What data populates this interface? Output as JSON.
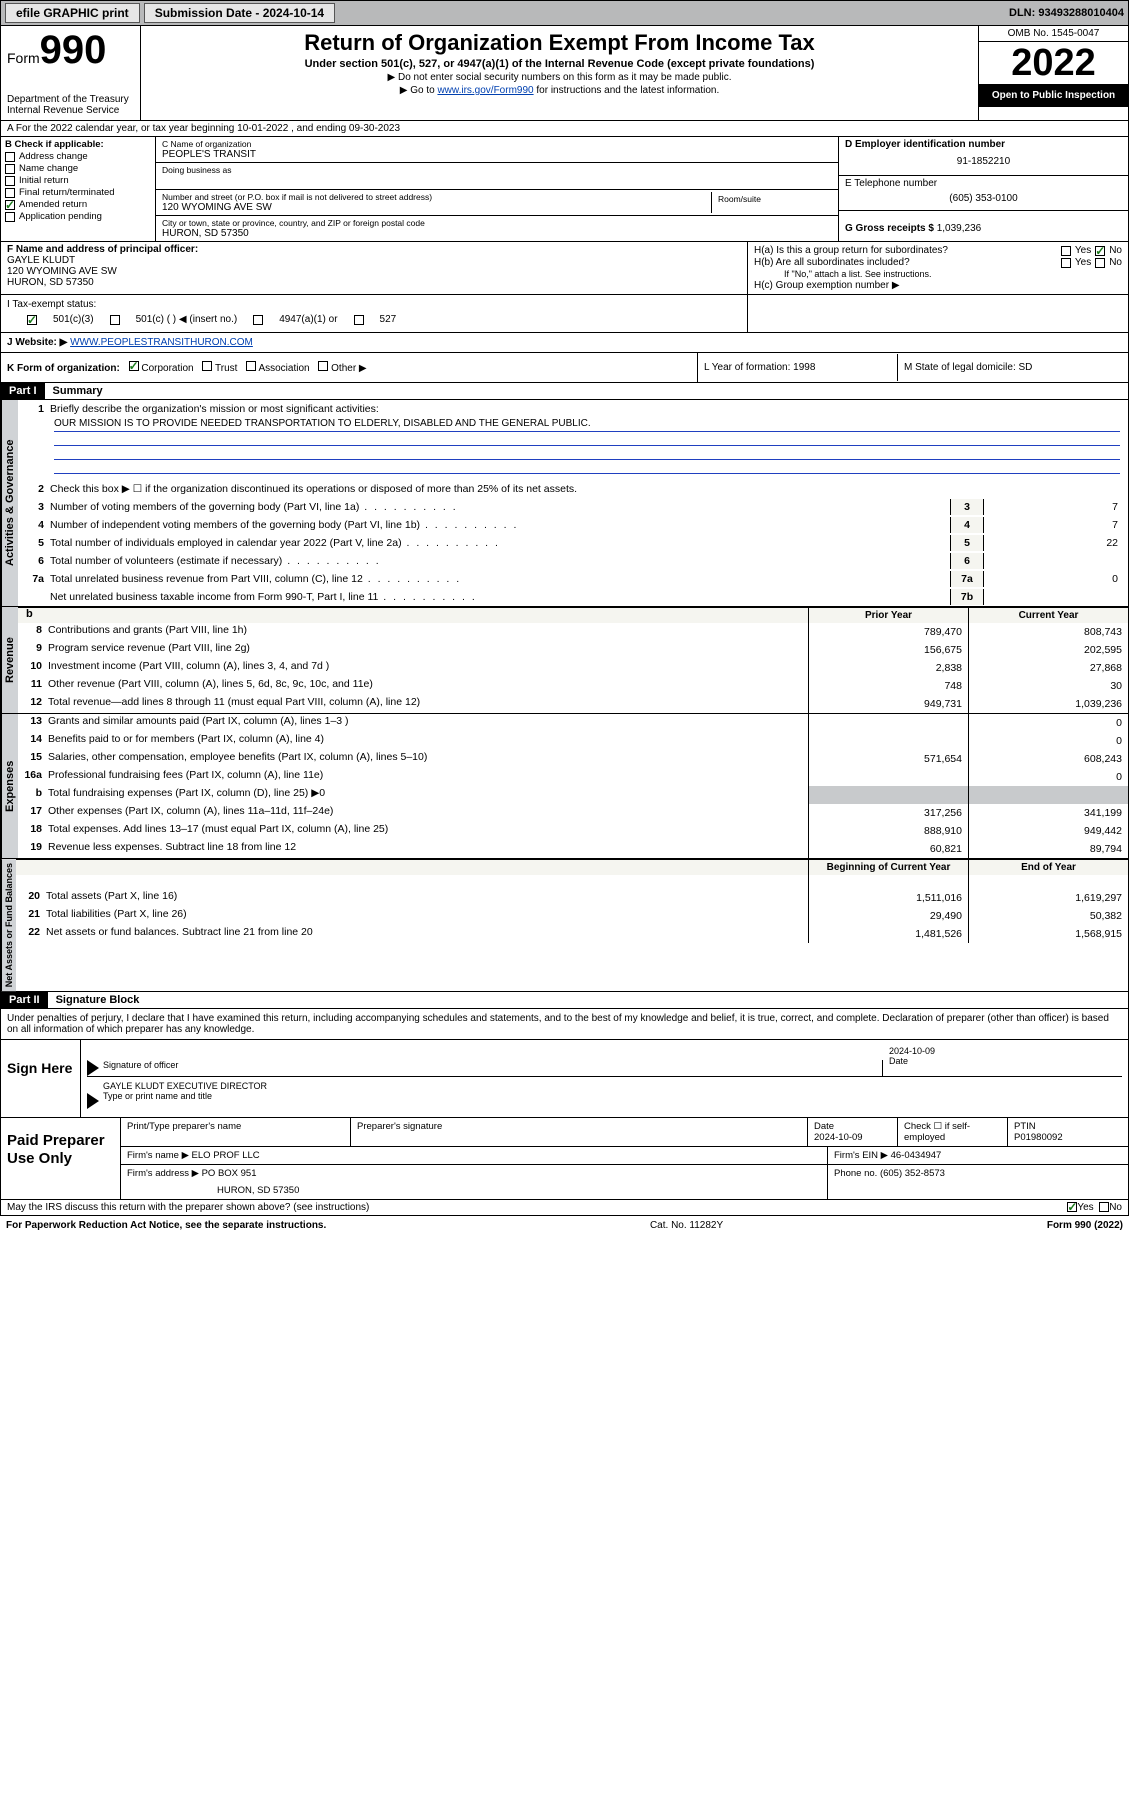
{
  "topbar": {
    "efile": "efile GRAPHIC print",
    "submission_label": "Submission Date - 2024-10-14",
    "dln": "DLN: 93493288010404"
  },
  "header": {
    "form_word": "Form",
    "form_no": "990",
    "dept": "Department of the Treasury",
    "irs": "Internal Revenue Service",
    "title": "Return of Organization Exempt From Income Tax",
    "sub": "Under section 501(c), 527, or 4947(a)(1) of the Internal Revenue Code (except private foundations)",
    "note1": "▶ Do not enter social security numbers on this form as it may be made public.",
    "note2_pre": "▶ Go to ",
    "note2_link": "www.irs.gov/Form990",
    "note2_post": " for instructions and the latest information.",
    "omb": "OMB No. 1545-0047",
    "year": "2022",
    "inspect": "Open to Public Inspection"
  },
  "row_a": "A For the 2022 calendar year, or tax year beginning 10-01-2022   , and ending 09-30-2023",
  "col_b": {
    "title": "B Check if applicable:",
    "items": [
      "Address change",
      "Name change",
      "Initial return",
      "Final return/terminated",
      "Amended return",
      "Application pending"
    ],
    "checked_idx": 4
  },
  "col_c": {
    "name_lab": "C Name of organization",
    "name": "PEOPLE'S TRANSIT",
    "dba_lab": "Doing business as",
    "dba": "",
    "street_lab": "Number and street (or P.O. box if mail is not delivered to street address)",
    "street": "120 WYOMING AVE SW",
    "suite_lab": "Room/suite",
    "city_lab": "City or town, state or province, country, and ZIP or foreign postal code",
    "city": "HURON, SD  57350"
  },
  "col_d": {
    "ein_lab": "D Employer identification number",
    "ein": "91-1852210",
    "tel_lab": "E Telephone number",
    "tel": "(605) 353-0100",
    "gross_lab": "G Gross receipts $",
    "gross": "1,039,236"
  },
  "row_f": {
    "lab": "F Name and address of principal officer:",
    "name": "GAYLE KLUDT",
    "addr1": "120 WYOMING AVE SW",
    "addr2": "HURON, SD  57350"
  },
  "row_h": {
    "ha": "H(a)  Is this a group return for subordinates?",
    "hb": "H(b)  Are all subordinates included?",
    "hb_note": "If \"No,\" attach a list. See instructions.",
    "hc": "H(c)  Group exemption number ▶",
    "yes": "Yes",
    "no": "No"
  },
  "row_i": {
    "lab": "I   Tax-exempt status:",
    "o1": "501(c)(3)",
    "o2": "501(c) (  ) ◀ (insert no.)",
    "o3": "4947(a)(1) or",
    "o4": "527"
  },
  "row_j": {
    "lab": "J   Website: ▶",
    "val": "WWW.PEOPLESTRANSITHURON.COM"
  },
  "row_k": {
    "lab": "K Form of organization:",
    "o1": "Corporation",
    "o2": "Trust",
    "o3": "Association",
    "o4": "Other ▶",
    "l": "L Year of formation: 1998",
    "m": "M State of legal domicile: SD"
  },
  "part1": {
    "hdr": "Part I",
    "title": "Summary"
  },
  "p1": {
    "l1_lab": "Briefly describe the organization's mission or most significant activities:",
    "l1_text": "OUR MISSION IS TO PROVIDE NEEDED TRANSPORTATION TO ELDERLY, DISABLED AND THE GENERAL PUBLIC.",
    "l2": "Check this box ▶ ☐  if the organization discontinued its operations or disposed of more than 25% of its net assets.",
    "lines_gov": [
      {
        "n": "3",
        "d": "Number of voting members of the governing body (Part VI, line 1a)",
        "box": "3",
        "v": "7"
      },
      {
        "n": "4",
        "d": "Number of independent voting members of the governing body (Part VI, line 1b)",
        "box": "4",
        "v": "7"
      },
      {
        "n": "5",
        "d": "Total number of individuals employed in calendar year 2022 (Part V, line 2a)",
        "box": "5",
        "v": "22"
      },
      {
        "n": "6",
        "d": "Total number of volunteers (estimate if necessary)",
        "box": "6",
        "v": ""
      },
      {
        "n": "7a",
        "d": "Total unrelated business revenue from Part VIII, column (C), line 12",
        "box": "7a",
        "v": "0"
      },
      {
        "n": "",
        "d": "Net unrelated business taxable income from Form 990-T, Part I, line 11",
        "box": "7b",
        "v": ""
      }
    ],
    "hdr_b": "b",
    "hdr_prior": "Prior Year",
    "hdr_curr": "Current Year",
    "rev": [
      {
        "n": "8",
        "d": "Contributions and grants (Part VIII, line 1h)",
        "p": "789,470",
        "c": "808,743"
      },
      {
        "n": "9",
        "d": "Program service revenue (Part VIII, line 2g)",
        "p": "156,675",
        "c": "202,595"
      },
      {
        "n": "10",
        "d": "Investment income (Part VIII, column (A), lines 3, 4, and 7d )",
        "p": "2,838",
        "c": "27,868"
      },
      {
        "n": "11",
        "d": "Other revenue (Part VIII, column (A), lines 5, 6d, 8c, 9c, 10c, and 11e)",
        "p": "748",
        "c": "30"
      },
      {
        "n": "12",
        "d": "Total revenue—add lines 8 through 11 (must equal Part VIII, column (A), line 12)",
        "p": "949,731",
        "c": "1,039,236"
      }
    ],
    "exp": [
      {
        "n": "13",
        "d": "Grants and similar amounts paid (Part IX, column (A), lines 1–3 )",
        "p": "",
        "c": "0"
      },
      {
        "n": "14",
        "d": "Benefits paid to or for members (Part IX, column (A), line 4)",
        "p": "",
        "c": "0"
      },
      {
        "n": "15",
        "d": "Salaries, other compensation, employee benefits (Part IX, column (A), lines 5–10)",
        "p": "571,654",
        "c": "608,243"
      },
      {
        "n": "16a",
        "d": "Professional fundraising fees (Part IX, column (A), line 11e)",
        "p": "",
        "c": "0"
      },
      {
        "n": "b",
        "d": "Total fundraising expenses (Part IX, column (D), line 25) ▶0",
        "p": "__shade__",
        "c": "__shade__"
      },
      {
        "n": "17",
        "d": "Other expenses (Part IX, column (A), lines 11a–11d, 11f–24e)",
        "p": "317,256",
        "c": "341,199"
      },
      {
        "n": "18",
        "d": "Total expenses. Add lines 13–17 (must equal Part IX, column (A), line 25)",
        "p": "888,910",
        "c": "949,442"
      },
      {
        "n": "19",
        "d": "Revenue less expenses. Subtract line 18 from line 12",
        "p": "60,821",
        "c": "89,794"
      }
    ],
    "na_hdr_p": "Beginning of Current Year",
    "na_hdr_c": "End of Year",
    "na": [
      {
        "n": "20",
        "d": "Total assets (Part X, line 16)",
        "p": "1,511,016",
        "c": "1,619,297"
      },
      {
        "n": "21",
        "d": "Total liabilities (Part X, line 26)",
        "p": "29,490",
        "c": "50,382"
      },
      {
        "n": "22",
        "d": "Net assets or fund balances. Subtract line 21 from line 20",
        "p": "1,481,526",
        "c": "1,568,915"
      }
    ]
  },
  "vlabels": {
    "gov": "Activities & Governance",
    "rev": "Revenue",
    "exp": "Expenses",
    "na": "Net Assets or Fund Balances"
  },
  "part2": {
    "hdr": "Part II",
    "title": "Signature Block"
  },
  "sig": {
    "intro": "Under penalties of perjury, I declare that I have examined this return, including accompanying schedules and statements, and to the best of my knowledge and belief, it is true, correct, and complete. Declaration of preparer (other than officer) is based on all information of which preparer has any knowledge.",
    "here": "Sign Here",
    "sig_lab": "Signature of officer",
    "date_lab": "Date",
    "date": "2024-10-09",
    "name": "GAYLE KLUDT EXECUTIVE DIRECTOR",
    "name_lab": "Type or print name and title"
  },
  "paid": {
    "title": "Paid Preparer Use Only",
    "r1": {
      "c1": "Print/Type preparer's name",
      "c2": "Preparer's signature",
      "c3": "Date",
      "c3v": "2024-10-09",
      "c4": "Check ☐ if self-employed",
      "c5": "PTIN",
      "c5v": "P01980092"
    },
    "r2": {
      "c1": "Firm's name    ▶ ELO PROF LLC",
      "c2": "Firm's EIN ▶ 46-0434947"
    },
    "r3": {
      "c1": "Firm's address ▶ PO BOX 951",
      "c2": "Phone no. (605) 352-8573"
    },
    "r3b": "HURON, SD  57350"
  },
  "footer": {
    "q": "May the IRS discuss this return with the preparer shown above? (see instructions)",
    "yes": "Yes",
    "no": "No",
    "pra": "For Paperwork Reduction Act Notice, see the separate instructions.",
    "cat": "Cat. No. 11282Y",
    "form": "Form 990 (2022)"
  }
}
